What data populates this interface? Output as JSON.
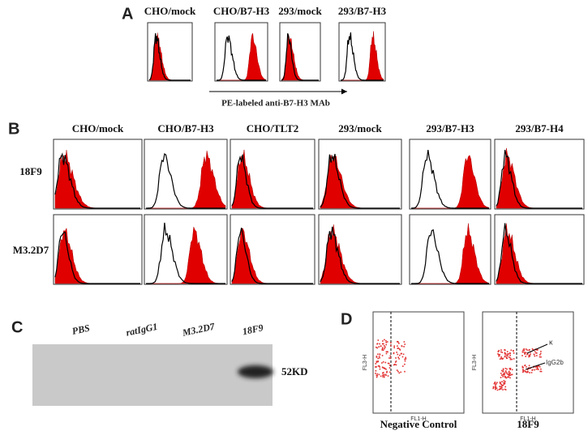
{
  "panel_a": {
    "label": "A",
    "columns": [
      "CHO/mock",
      "CHO/B7-H3",
      "293/mock",
      "293/B7-H3"
    ],
    "axis_label": "PE-labeled anti-B7-H3 MAb"
  },
  "panel_b": {
    "label": "B",
    "columns": [
      "CHO/mock",
      "CHO/B7-H3",
      "CHO/TLT2",
      "293/mock",
      "293/B7-H3",
      "293/B7-H4"
    ],
    "rows": [
      "18F9",
      "M3.2D7"
    ]
  },
  "panel_c": {
    "label": "C",
    "lanes": [
      "PBS",
      "ratIgG1",
      "M3.2D7",
      "18F9"
    ],
    "band_label": "52KD"
  },
  "panel_d": {
    "label": "D",
    "y_axis_label": "FL3-H",
    "x_axis_label": "FL1-H",
    "arrow_labels": [
      "κ",
      "IgG2b"
    ],
    "captions": [
      "Negative Control",
      "18F9"
    ]
  }
}
